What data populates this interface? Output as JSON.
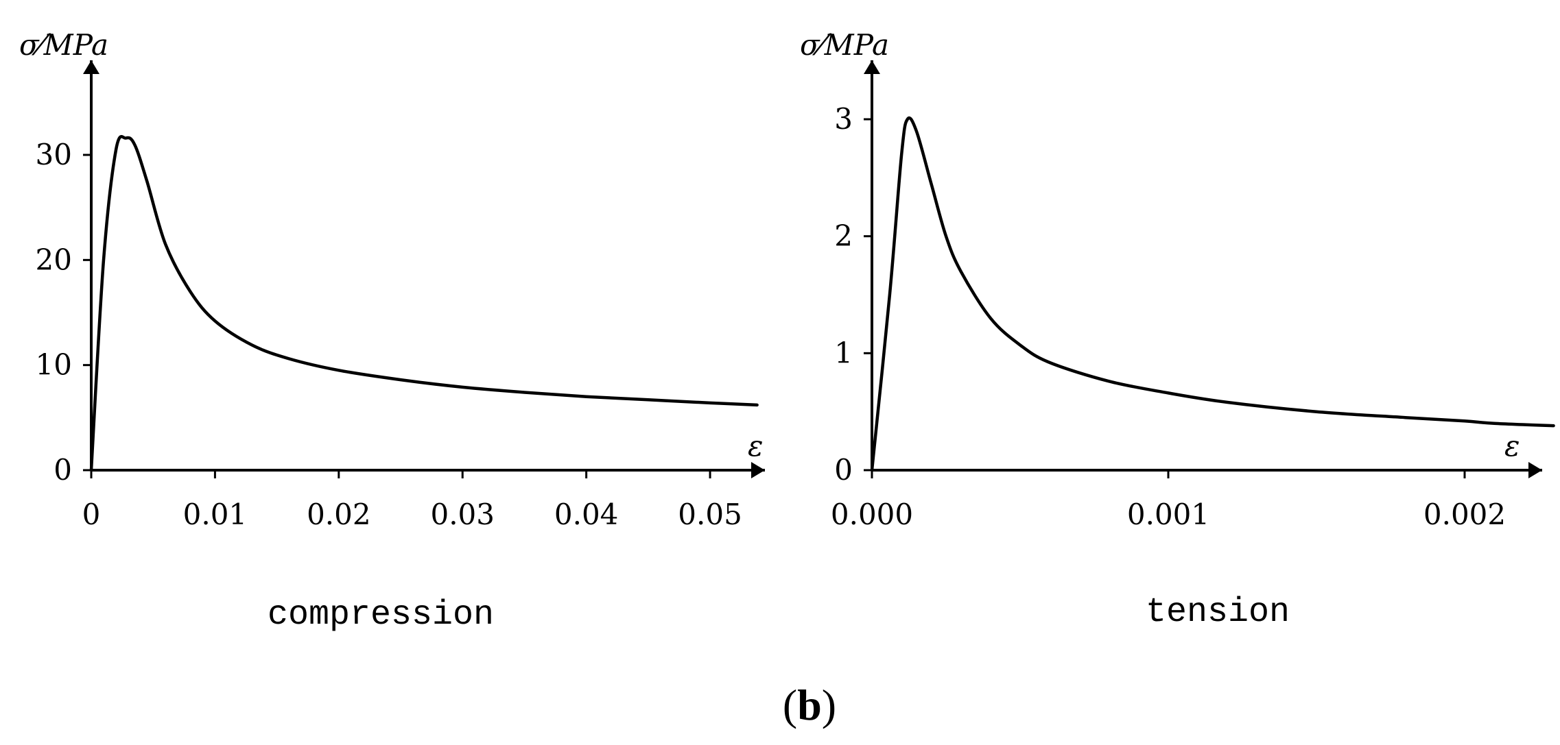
{
  "figure_label": {
    "open": "(",
    "letter": "b",
    "close": ")"
  },
  "chart_data": [
    {
      "type": "line",
      "caption": "compression",
      "ylabel": "σ⁄MPa",
      "xlabel": "ε",
      "xlim": [
        0,
        0.054
      ],
      "ylim": [
        0,
        39
      ],
      "x_ticks": [
        0,
        0.01,
        0.02,
        0.03,
        0.04,
        0.05
      ],
      "x_tick_labels": [
        "0",
        "0.01",
        "0.02",
        "0.03",
        "0.04",
        "0.05"
      ],
      "y_ticks": [
        0,
        10,
        20,
        30
      ],
      "y_tick_labels": [
        "0",
        "10",
        "20",
        "30"
      ],
      "series": [
        {
          "x": [
            0,
            0.001,
            0.002,
            0.0028,
            0.0035,
            0.0045,
            0.006,
            0.008,
            0.01,
            0.013,
            0.016,
            0.02,
            0.025,
            0.03,
            0.035,
            0.04,
            0.045,
            0.05,
            0.0538
          ],
          "y": [
            0,
            20,
            30.5,
            31.6,
            31.0,
            27.5,
            21.5,
            17.0,
            14.2,
            11.9,
            10.6,
            9.5,
            8.6,
            7.9,
            7.4,
            7.0,
            6.7,
            6.4,
            6.2
          ]
        }
      ]
    },
    {
      "type": "line",
      "caption": "tension",
      "ylabel": "σ⁄MPa",
      "xlabel": "ε",
      "xlim": [
        0,
        0.00235
      ],
      "ylim": [
        0,
        3.6
      ],
      "x_ticks": [
        0,
        0.001,
        0.002
      ],
      "x_tick_labels": [
        "0.000",
        "0.001",
        "0.002"
      ],
      "y_ticks": [
        0,
        1,
        2,
        3
      ],
      "y_tick_labels": [
        "0",
        "1",
        "2",
        "3"
      ],
      "series": [
        {
          "x": [
            0,
            6e-05,
            0.0001,
            0.00012,
            0.00015,
            0.0002,
            0.00025,
            0.0003,
            0.0004,
            0.0005,
            0.0006,
            0.0008,
            0.001,
            0.0012,
            0.0015,
            0.0018,
            0.002,
            0.0021,
            0.0023
          ],
          "y": [
            0,
            1.5,
            2.7,
            3.0,
            2.9,
            2.45,
            2.0,
            1.7,
            1.3,
            1.07,
            0.92,
            0.76,
            0.66,
            0.58,
            0.5,
            0.45,
            0.42,
            0.4,
            0.38
          ]
        }
      ]
    }
  ]
}
